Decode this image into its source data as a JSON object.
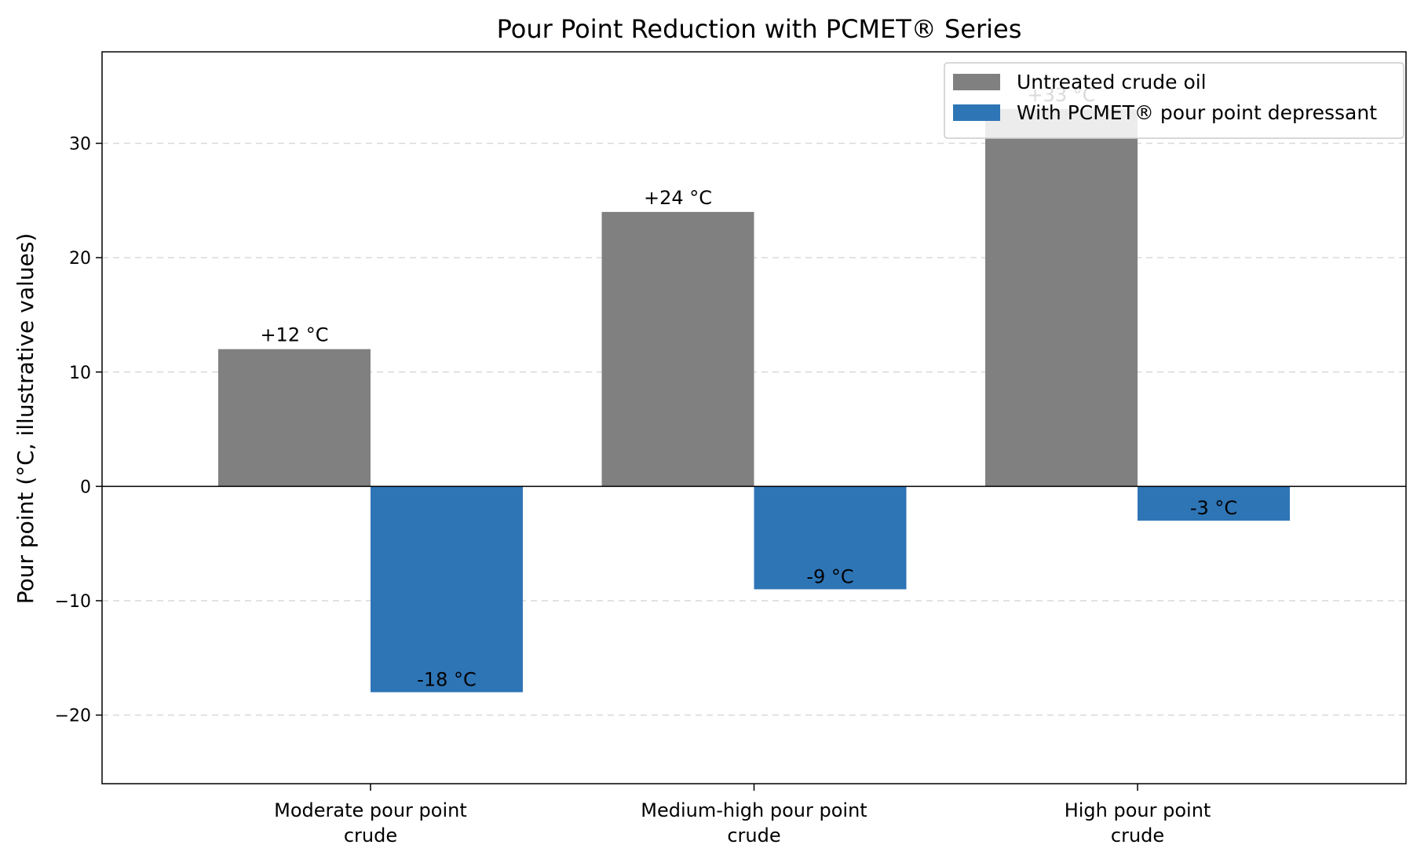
{
  "chart_data": {
    "type": "bar",
    "title": "Pour Point Reduction with PCMET® Series",
    "xlabel": "",
    "ylabel": "Pour point (°C, illustrative values)",
    "ylim": [
      -26,
      38
    ],
    "yticks": [
      -20,
      -10,
      0,
      10,
      20,
      30
    ],
    "ytick_labels": [
      "−20",
      "−10",
      "0",
      "10",
      "20",
      "30"
    ],
    "grid": "y-dashed",
    "legend_position": "top-right",
    "categories": [
      [
        "Moderate pour point",
        "crude"
      ],
      [
        "Medium-high pour point",
        "crude"
      ],
      [
        "High pour point",
        "crude"
      ]
    ],
    "series": [
      {
        "name": "Untreated crude oil",
        "color": "#808080",
        "values": [
          12,
          24,
          33
        ],
        "labels": [
          "+12 °C",
          "+24 °C",
          "+33 °C"
        ]
      },
      {
        "name": "With PCMET® pour point depressant",
        "color": "#2e75b6",
        "values": [
          -18,
          -9,
          -3
        ],
        "labels": [
          "-18 °C",
          "-9 °C",
          "-3 °C"
        ]
      }
    ]
  }
}
